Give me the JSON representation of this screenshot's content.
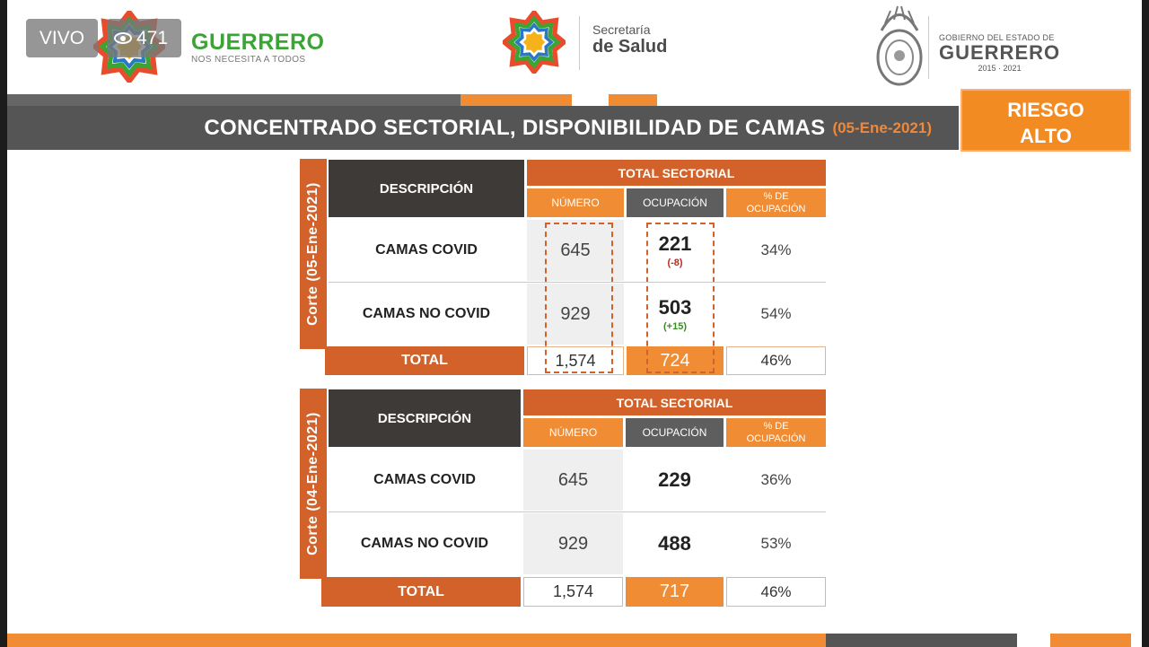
{
  "live": {
    "label": "VIVO",
    "viewers": "471"
  },
  "brand_left": {
    "name": "GUERRERO",
    "tagline": "NOS NECESITA A TODOS"
  },
  "brand_center": {
    "line1": "Secretaría",
    "line2": "de Salud"
  },
  "brand_right": {
    "line1": "GOBIERNO DEL ESTADO DE",
    "line2": "GUERRERO",
    "line3": "2015 · 2021"
  },
  "header": {
    "title": "CONCENTRADO SECTORIAL, DISPONIBILIDAD DE CAMAS",
    "date": "(05-Ene-2021)"
  },
  "risk": {
    "line1": "RIESGO",
    "line2": "ALTO"
  },
  "colors": {
    "orange": "#f08c33",
    "dark_orange": "#d2612a",
    "dark_gray": "#3e3a37",
    "title_gray": "#555555"
  },
  "tables": [
    {
      "side_label": "Corte (05-Ene-2021)",
      "desc_header": "DESCRIPCIÓN",
      "group_header": "TOTAL SECTORIAL",
      "col_numero": "NÚMERO",
      "col_ocupacion": "OCUPACIÓN",
      "col_pct_1": "% DE",
      "col_pct_2": "OCUPACIÓN",
      "rows": [
        {
          "label": "CAMAS COVID",
          "numero": "645",
          "ocupacion": "221",
          "delta": "(-8)",
          "pct": "34%"
        },
        {
          "label": "CAMAS NO COVID",
          "numero": "929",
          "ocupacion": "503",
          "delta": "(+15)",
          "pct": "54%"
        }
      ],
      "total": {
        "label": "TOTAL",
        "numero": "1,574",
        "ocupacion": "724",
        "pct": "46%"
      }
    },
    {
      "side_label": "Corte (04-Ene-2021)",
      "desc_header": "DESCRIPCIÓN",
      "group_header": "TOTAL SECTORIAL",
      "col_numero": "NÚMERO",
      "col_ocupacion": "OCUPACIÓN",
      "col_pct_1": "% DE",
      "col_pct_2": "OCUPACIÓN",
      "rows": [
        {
          "label": "CAMAS COVID",
          "numero": "645",
          "ocupacion": "229",
          "pct": "36%"
        },
        {
          "label": "CAMAS NO COVID",
          "numero": "929",
          "ocupacion": "488",
          "pct": "53%"
        }
      ],
      "total": {
        "label": "TOTAL",
        "numero": "1,574",
        "ocupacion": "717",
        "pct": "46%"
      }
    }
  ]
}
